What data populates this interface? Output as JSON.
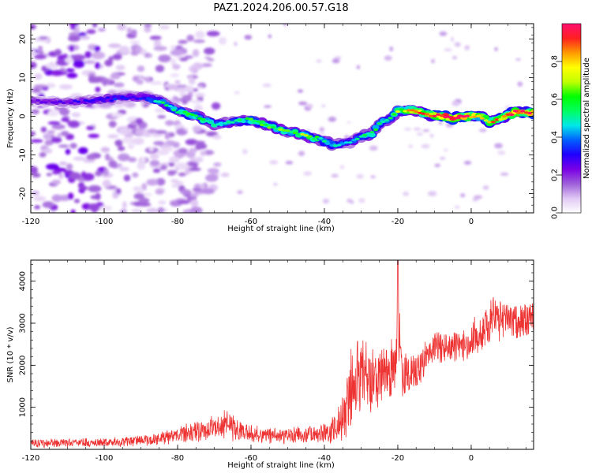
{
  "title": "PAZ1.2024.206.00.57.G18",
  "chart_data": [
    {
      "type": "heatmap",
      "xlabel": "Height of straight line (km)",
      "ylabel": "Frequency (Hz)",
      "xlim": [
        -120,
        17
      ],
      "ylim": [
        -25,
        24
      ],
      "x_ticks": [
        -120,
        -100,
        -80,
        -60,
        -40,
        -20,
        0
      ],
      "y_ticks": [
        -20,
        -10,
        0,
        10,
        20
      ],
      "ridge": {
        "x": [
          -120,
          -108,
          -100,
          -90,
          -85,
          -80,
          -75,
          -70,
          -65,
          -60,
          -55,
          -50,
          -45,
          -40,
          -37,
          -33,
          -30,
          -27,
          -25,
          -22,
          -20,
          -16,
          -12,
          -8,
          -5,
          -2,
          0,
          3,
          5,
          8,
          12,
          17
        ],
        "y": [
          4,
          3.5,
          4.5,
          5,
          4,
          1.5,
          0,
          -2,
          -1.5,
          -1,
          -2.5,
          -4,
          -5,
          -6.5,
          -7.5,
          -6.5,
          -5.5,
          -4.5,
          -2,
          -0.5,
          1.5,
          1.5,
          0.5,
          0,
          -0.5,
          0,
          0,
          0,
          -1.5,
          -0.5,
          1,
          1
        ],
        "amplitude": [
          0.2,
          0.25,
          0.3,
          0.3,
          0.45,
          0.5,
          0.55,
          0.5,
          0.45,
          0.55,
          0.6,
          0.55,
          0.6,
          0.5,
          0.45,
          0.4,
          0.45,
          0.55,
          0.5,
          0.5,
          0.65,
          0.75,
          0.85,
          0.95,
          1.0,
          0.95,
          0.85,
          0.8,
          0.75,
          0.8,
          0.95,
          0.9
        ]
      },
      "colorbar": {
        "label": "Normalized spectral amplitude",
        "range": [
          0,
          1
        ],
        "ticks": [
          "0.0",
          "0.2",
          "0.4",
          "0.6",
          "0.8"
        ],
        "colors": [
          "#ffffff",
          "#e0c8f4",
          "#9e5fd9",
          "#7a00e6",
          "#2000ff",
          "#0060ff",
          "#00e8e8",
          "#00ff60",
          "#00ff00",
          "#c0ff00",
          "#ffff00",
          "#ff9900",
          "#ff2020",
          "#ff1070"
        ]
      }
    },
    {
      "type": "line",
      "xlabel": "Height of straight line (km)",
      "ylabel": "SNR (10 * v/v)",
      "xlim": [
        -120,
        17
      ],
      "ylim": [
        0,
        4500
      ],
      "x_ticks": [
        -120,
        -100,
        -80,
        -60,
        -40,
        -20,
        0
      ],
      "y_ticks": [
        1000,
        2000,
        3000,
        4000
      ],
      "color": "#ee3333",
      "envelope": {
        "x": [
          -120,
          -110,
          -100,
          -92,
          -85,
          -80,
          -75,
          -70,
          -67,
          -65,
          -60,
          -55,
          -50,
          -45,
          -40,
          -37,
          -35,
          -33,
          -30,
          -27,
          -25,
          -22,
          -20.5,
          -20,
          -19,
          -17,
          -15,
          -12,
          -10,
          -8,
          -5,
          -2,
          0,
          3,
          5,
          6,
          8,
          10,
          12,
          15,
          17
        ],
        "mean": [
          150,
          160,
          170,
          200,
          260,
          330,
          420,
          520,
          650,
          540,
          380,
          330,
          320,
          340,
          400,
          500,
          800,
          1400,
          1800,
          1700,
          1800,
          1800,
          2100,
          3300,
          1700,
          1800,
          1900,
          2200,
          2400,
          2400,
          2400,
          2500,
          2600,
          2800,
          3000,
          3200,
          3000,
          3100,
          3000,
          3100,
          3200
        ],
        "spread": [
          120,
          120,
          120,
          150,
          180,
          220,
          280,
          320,
          380,
          350,
          260,
          230,
          220,
          230,
          280,
          400,
          700,
          1100,
          1000,
          900,
          850,
          800,
          800,
          1000,
          700,
          600,
          550,
          500,
          450,
          450,
          450,
          450,
          500,
          600,
          700,
          600,
          650,
          550,
          550,
          500,
          450
        ]
      },
      "peak": {
        "x": -20,
        "y": 4500
      }
    }
  ]
}
